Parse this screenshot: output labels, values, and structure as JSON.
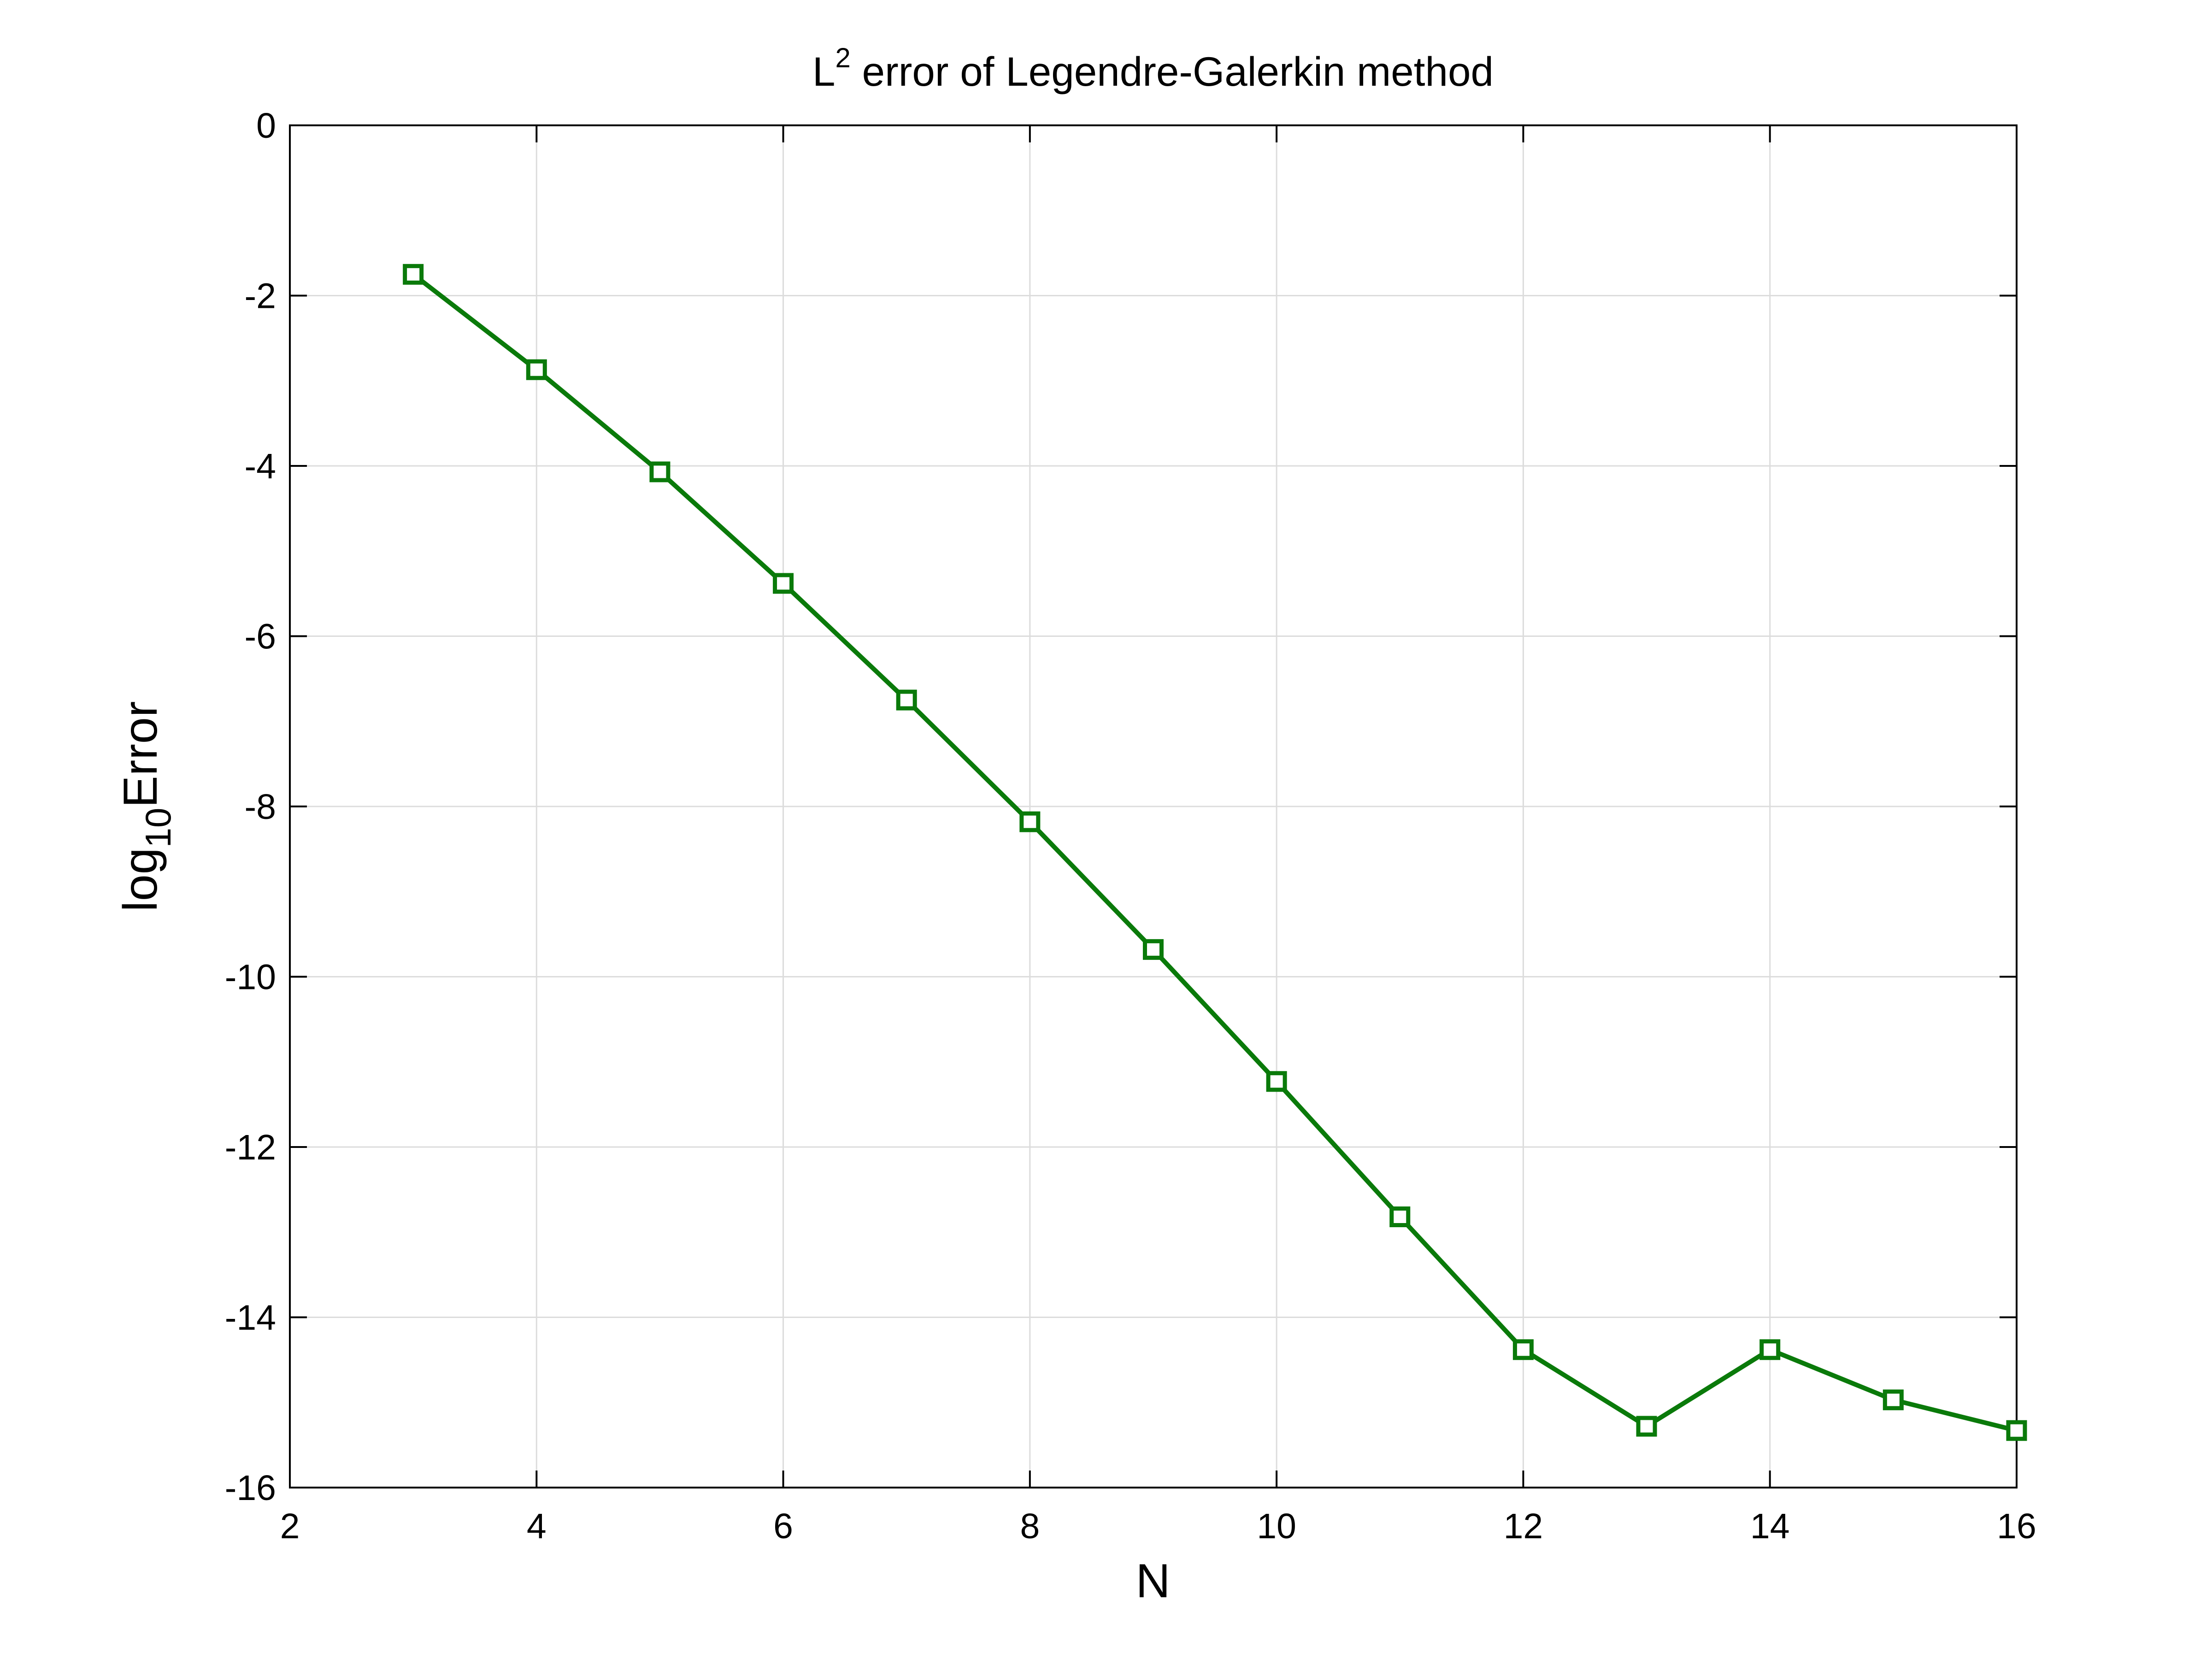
{
  "chart_data": {
    "type": "line",
    "title": {
      "base": "L",
      "sup": "2",
      "rest": " error of Legendre-Galerkin method"
    },
    "xlabel": "N",
    "ylabel": {
      "base": "log",
      "sub": "10",
      "rest": "Error"
    },
    "xlim": [
      2,
      16
    ],
    "ylim": [
      -16,
      0
    ],
    "xticks": [
      2,
      4,
      6,
      8,
      10,
      12,
      14,
      16
    ],
    "yticks": [
      0,
      -2,
      -4,
      -6,
      -8,
      -10,
      -12,
      -14,
      -16
    ],
    "grid": true,
    "legend": "none",
    "series": [
      {
        "color": "#0a7a0a",
        "marker": "square-open",
        "x": [
          3,
          4,
          5,
          6,
          7,
          8,
          9,
          10,
          11,
          12,
          13,
          14,
          15,
          16
        ],
        "y": [
          -1.75,
          -2.87,
          -4.07,
          -5.38,
          -6.75,
          -8.18,
          -9.68,
          -11.23,
          -12.82,
          -14.38,
          -15.28,
          -14.38,
          -14.97,
          -15.33
        ]
      }
    ]
  }
}
